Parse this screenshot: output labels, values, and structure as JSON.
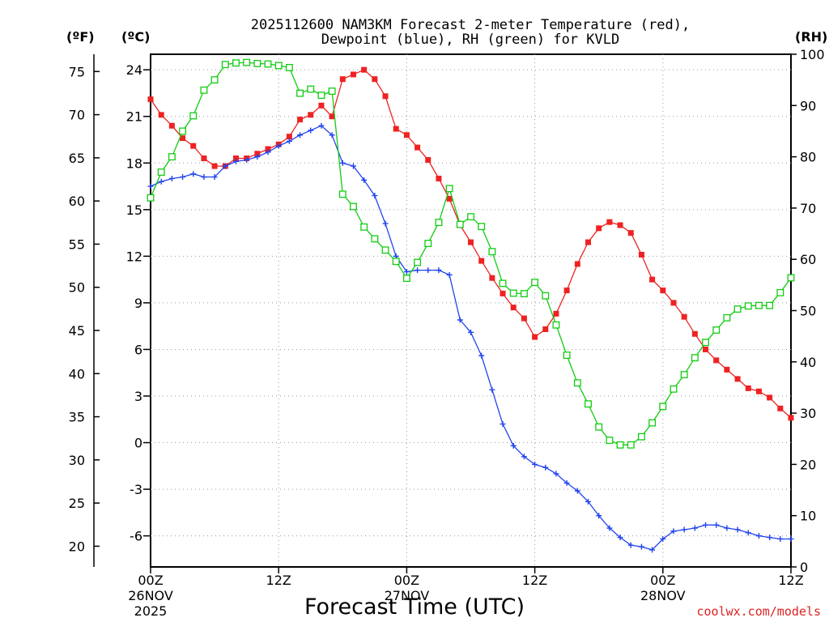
{
  "chart_data": {
    "type": "line",
    "title_line1": "2025112600 NAM3KM Forecast 2-meter Temperature (red),",
    "title_line2": "Dewpoint (blue), RH (green) for KVLD",
    "xlabel": "Forecast Time (UTC)",
    "credit": "coolwx.com/models",
    "unit_labels": {
      "f": "(ºF)",
      "c": "(ºC)",
      "rh": "(RH)"
    },
    "xlim": [
      0,
      60
    ],
    "ylim_c": [
      -8,
      25
    ],
    "ylim_f": [
      17.6,
      77
    ],
    "ylim_rh": [
      0,
      100
    ],
    "x_ticks": [
      {
        "x": 0,
        "line1": "00Z",
        "line2": "26NOV",
        "line3": "2025"
      },
      {
        "x": 12,
        "line1": "12Z",
        "line2": "",
        "line3": ""
      },
      {
        "x": 24,
        "line1": "00Z",
        "line2": "27NOV",
        "line3": ""
      },
      {
        "x": 36,
        "line1": "12Z",
        "line2": "",
        "line3": ""
      },
      {
        "x": 48,
        "line1": "00Z",
        "line2": "28NOV",
        "line3": ""
      },
      {
        "x": 60,
        "line1": "12Z",
        "line2": "",
        "line3": ""
      }
    ],
    "c_ticks": [
      "-6",
      "-3",
      "0",
      "3",
      "6",
      "9",
      "12",
      "15",
      "18",
      "21",
      "24"
    ],
    "f_ticks": [
      "20",
      "25",
      "30",
      "35",
      "40",
      "45",
      "50",
      "55",
      "60",
      "65",
      "70",
      "75"
    ],
    "rh_ticks": [
      "0",
      "10",
      "20",
      "30",
      "40",
      "50",
      "60",
      "70",
      "80",
      "90",
      "100"
    ],
    "colors": {
      "temp": "#ee2222",
      "dew": "#2244ee",
      "rh": "#11cc11",
      "grid": "#999999"
    },
    "series": [
      {
        "name": "Temperature",
        "unit": "C",
        "marker": "square",
        "values": [
          22.1,
          21.1,
          20.4,
          19.6,
          19.1,
          18.3,
          17.8,
          17.8,
          18.3,
          18.3,
          18.6,
          18.9,
          19.2,
          19.7,
          20.8,
          21.1,
          21.7,
          21.0,
          23.4,
          23.7,
          24.0,
          23.4,
          22.3,
          20.2,
          19.8,
          19.0,
          18.2,
          17.0,
          15.7,
          14.0,
          12.9,
          11.7,
          10.6,
          9.6,
          8.7,
          8.0,
          6.8,
          7.3,
          8.3,
          9.8,
          11.5,
          12.9,
          13.8,
          14.2,
          14.0,
          13.5,
          12.1,
          10.5,
          9.8,
          9.0,
          8.1,
          7.0,
          6.0,
          5.3,
          4.7,
          4.1,
          3.5,
          3.3,
          2.9,
          2.2,
          1.6
        ]
      },
      {
        "name": "Dewpoint",
        "unit": "C",
        "marker": "plus",
        "values": [
          16.5,
          16.8,
          17.0,
          17.1,
          17.3,
          17.1,
          17.1,
          17.8,
          18.1,
          18.2,
          18.4,
          18.7,
          19.1,
          19.4,
          19.8,
          20.1,
          20.4,
          19.8,
          18.0,
          17.8,
          16.9,
          15.9,
          14.1,
          12.0,
          11.0,
          11.1,
          11.1,
          11.1,
          10.8,
          7.9,
          7.1,
          5.6,
          3.4,
          1.2,
          -0.2,
          -0.9,
          -1.4,
          -1.6,
          -2.0,
          -2.6,
          -3.1,
          -3.8,
          -4.7,
          -5.5,
          -6.1,
          -6.6,
          -6.7,
          -6.9,
          -6.2,
          -5.7,
          -5.6,
          -5.5,
          -5.3,
          -5.3,
          -5.5,
          -5.6,
          -5.8,
          -6.0,
          -6.1,
          -6.2,
          -6.2
        ]
      },
      {
        "name": "RH",
        "unit": "%",
        "marker": "open-square",
        "values": [
          72,
          77,
          80,
          85,
          88,
          93,
          95,
          98,
          98.3,
          98.4,
          98.2,
          98.1,
          97.8,
          97.4,
          92.4,
          93.2,
          92.0,
          92.8,
          72.7,
          70.3,
          66.3,
          64.0,
          61.8,
          59.6,
          56.3,
          59.4,
          63.1,
          67.2,
          73.8,
          66.8,
          68.3,
          66.4,
          61.5,
          55.3,
          53.4,
          53.3,
          55.5,
          52.9,
          47.2,
          41.3,
          35.9,
          31.8,
          27.3,
          24.7,
          23.8,
          23.8,
          25.4,
          28.1,
          31.3,
          34.7,
          37.5,
          40.8,
          43.8,
          46.2,
          48.6,
          50.3,
          50.9,
          51.0,
          51.0,
          53.5,
          56.4
        ]
      }
    ]
  }
}
